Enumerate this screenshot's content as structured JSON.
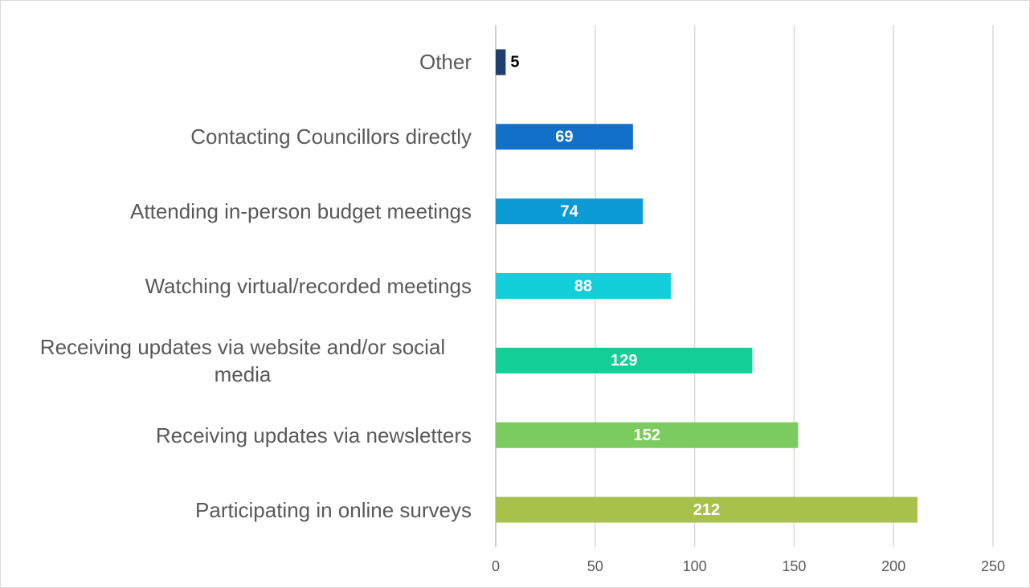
{
  "chart_data": {
    "type": "bar",
    "orientation": "horizontal",
    "categories": [
      "Other",
      "Contacting Councillors directly",
      "Attending in-person budget meetings",
      "Watching virtual/recorded meetings",
      "Receiving updates via website and/or social media",
      "Receiving updates via newsletters",
      "Participating in online surveys"
    ],
    "values": [
      5,
      69,
      74,
      88,
      129,
      152,
      212
    ],
    "colors": [
      "#1f3f6e",
      "#1270c8",
      "#0d9bd6",
      "#13cfd9",
      "#12cf98",
      "#7ccb5e",
      "#a8c14a"
    ],
    "xlim": [
      0,
      250
    ],
    "xticks": [
      0,
      50,
      100,
      150,
      200,
      250
    ],
    "grid": true
  }
}
